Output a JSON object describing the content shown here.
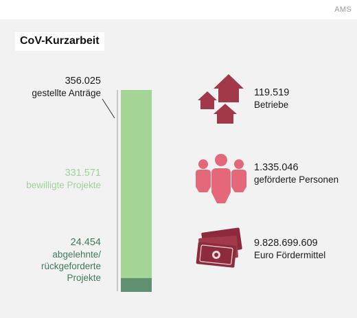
{
  "source": "AMS",
  "title": "CoV-Kurzarbeit",
  "colors": {
    "approved": "#a4d595",
    "rejected": "#5f9071",
    "approved_text": "#9fd29a",
    "rejected_text": "#3f7a57",
    "icon": "#a1394a"
  },
  "chart_data": {
    "type": "bar",
    "orientation": "vertical-stacked",
    "total": {
      "value": "356.025",
      "label": "gestellte Anträge"
    },
    "series": [
      {
        "name": "bewilligte Projekte",
        "value_text": "331.571",
        "value": 331571
      },
      {
        "name": "abgelehnte/ rückgeforderte Projekte",
        "value_text": "24.454",
        "value": 24454
      }
    ]
  },
  "labels": {
    "total_number": "356.025",
    "total_text": "gestellte Anträge",
    "approved_number": "331.571",
    "approved_text": "bewilligte Projekte",
    "rejected_number": "24.454",
    "rejected_text": "abgelehnte/\nrückgeforderte\nProjekte"
  },
  "stats": {
    "betriebe_number": "119.519",
    "betriebe_label": "Betriebe",
    "betriebe_icon": "houses-icon",
    "personen_number": "1.335.046",
    "personen_label": "geförderte Personen",
    "personen_icon": "people-icon",
    "mittel_number": "9.828.699.609",
    "mittel_label": "Euro Fördermittel",
    "mittel_icon": "money-icon"
  }
}
